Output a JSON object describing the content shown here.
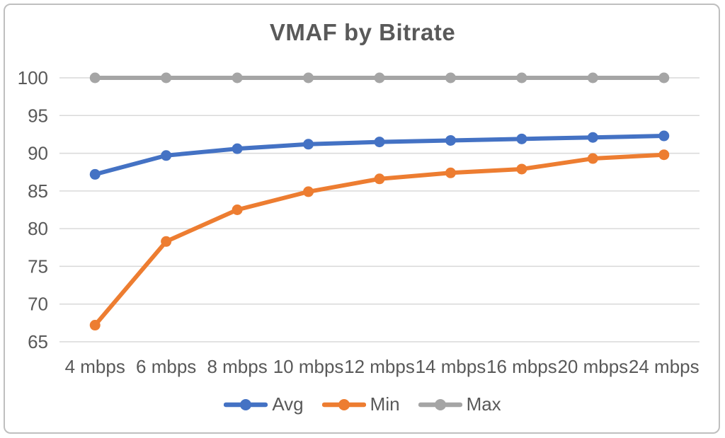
{
  "chart_data": {
    "type": "line",
    "title": "VMAF by Bitrate",
    "categories": [
      "4 mbps",
      "6 mbps",
      "8 mbps",
      "10 mbps",
      "12 mbps",
      "14 mbps",
      "16 mbps",
      "20 mbps",
      "24 mbps"
    ],
    "series": [
      {
        "name": "Avg",
        "color": "#4472C4",
        "values": [
          87.2,
          89.7,
          90.6,
          91.2,
          91.5,
          91.7,
          91.9,
          92.1,
          92.3
        ]
      },
      {
        "name": "Min",
        "color": "#ED7D31",
        "values": [
          67.2,
          78.3,
          82.5,
          84.9,
          86.6,
          87.4,
          87.9,
          89.3,
          89.8
        ]
      },
      {
        "name": "Max",
        "color": "#A5A5A5",
        "values": [
          100,
          100,
          100,
          100,
          100,
          100,
          100,
          100,
          100
        ]
      }
    ],
    "y_ticks": [
      100,
      95,
      90,
      85,
      80,
      75,
      70,
      65
    ],
    "ylim": [
      65,
      100
    ],
    "xlabel": "",
    "ylabel": "",
    "grid": true,
    "legend_position": "bottom",
    "colors": {
      "text": "#595959",
      "gridline": "#D9D9D9",
      "background": "#FFFFFF",
      "frame_border": "#BFBFBF"
    }
  }
}
